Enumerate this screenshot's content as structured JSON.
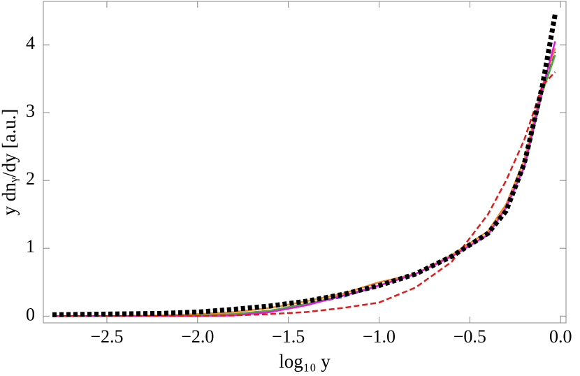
{
  "chart_data": {
    "type": "line",
    "x_label": "log₁₀ y",
    "y_label": "y dnᵧ/dy [a.u.]",
    "x": [
      -2.8,
      -2.5,
      -2.2,
      -2.0,
      -1.8,
      -1.6,
      -1.4,
      -1.2,
      -1.0,
      -0.8,
      -0.6,
      -0.4,
      -0.3,
      -0.2,
      -0.1,
      -0.03
    ],
    "series": [
      {
        "color": "#1f3fd8",
        "style": "dashed",
        "values": [
          0,
          0,
          0,
          0.01,
          0.03,
          0.08,
          0.18,
          0.28,
          0.45,
          0.62,
          0.88,
          1.2,
          1.6,
          2.2,
          3.3,
          3.9
        ]
      },
      {
        "color": "#4caf3a",
        "style": "solid",
        "values": [
          0,
          0,
          0,
          0.01,
          0.03,
          0.08,
          0.18,
          0.3,
          0.45,
          0.62,
          0.88,
          1.2,
          1.6,
          2.2,
          3.3,
          3.85
        ]
      },
      {
        "color": "#f08a1c",
        "style": "solid",
        "values": [
          0,
          0,
          0.01,
          0.03,
          0.06,
          0.12,
          0.22,
          0.33,
          0.5,
          0.62,
          0.9,
          1.25,
          1.65,
          2.3,
          3.4,
          3.95
        ]
      },
      {
        "color": "#e619e0",
        "style": "solid",
        "values": [
          0,
          0,
          0,
          0,
          0.01,
          0.06,
          0.16,
          0.3,
          0.45,
          0.62,
          0.88,
          1.2,
          1.6,
          2.2,
          3.35,
          4.05
        ]
      },
      {
        "color": "#e01b1b",
        "style": "dashed",
        "values": [
          0,
          0,
          0,
          0,
          0.01,
          0.03,
          0.06,
          0.12,
          0.2,
          0.42,
          0.8,
          1.5,
          2.0,
          2.6,
          3.4,
          3.6
        ]
      },
      {
        "color": "#000000",
        "style": "dotted",
        "values": [
          0.02,
          0.03,
          0.04,
          0.06,
          0.1,
          0.15,
          0.22,
          0.32,
          0.45,
          0.62,
          0.88,
          1.22,
          1.55,
          2.25,
          3.4,
          4.45
        ]
      }
    ],
    "xlim": [
      -2.85,
      0.03
    ],
    "ylim": [
      -0.1,
      4.64
    ],
    "xticks": [
      {
        "value": -2.5,
        "label": "−2.5"
      },
      {
        "value": -2.0,
        "label": "−2.0"
      },
      {
        "value": -1.5,
        "label": "−1.5"
      },
      {
        "value": -1.0,
        "label": "−1.0"
      },
      {
        "value": -0.5,
        "label": "−0.5"
      },
      {
        "value": 0.0,
        "label": "0.0"
      }
    ],
    "yticks": [
      0,
      1,
      2,
      3,
      4
    ],
    "grid": false
  }
}
